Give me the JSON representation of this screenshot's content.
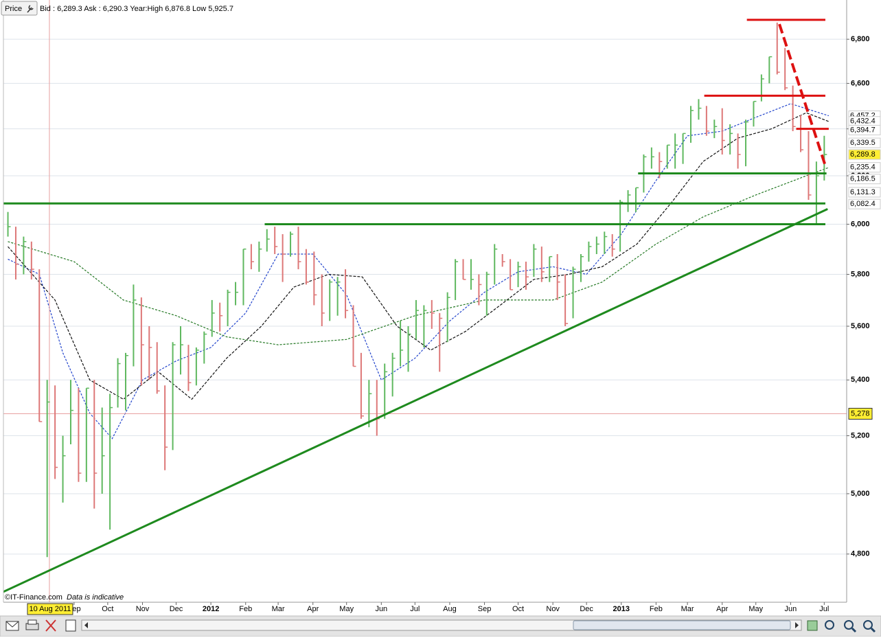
{
  "header": {
    "button": "Price",
    "quote": "Bid : 6,289.3 Ask : 6,290.3 Year:High 6,876.8 Low 5,925.7"
  },
  "footer": {
    "copyright": "©IT-Finance.com",
    "note": "Data is indicative"
  },
  "chart_data": {
    "type": "ohlc",
    "log_scale": true,
    "grid": true,
    "xlim": [
      "2011-06-30",
      "2013-07-21"
    ],
    "ylim": [
      4646,
      6983
    ],
    "yticks": [
      {
        "value": 4800,
        "label": "4,800"
      },
      {
        "value": 5000,
        "label": "5,000"
      },
      {
        "value": 5200,
        "label": "5,200"
      },
      {
        "value": 5400,
        "label": "5,400"
      },
      {
        "value": 5600,
        "label": "5,600"
      },
      {
        "value": 5800,
        "label": "5,800"
      },
      {
        "value": 6000,
        "label": "6,000"
      },
      {
        "value": 6200,
        "label": "6,200"
      },
      {
        "value": 6400,
        "label": "6,400"
      },
      {
        "value": 6600,
        "label": "6,600"
      },
      {
        "value": 6800,
        "label": "6,800"
      }
    ],
    "xticks": [
      {
        "value": "2011-09-01",
        "label": "Sep"
      },
      {
        "value": "2011-10-01",
        "label": "Oct"
      },
      {
        "value": "2011-11-01",
        "label": "Nov"
      },
      {
        "value": "2011-12-01",
        "label": "Dec"
      },
      {
        "value": "2012-01-01",
        "label": "2012"
      },
      {
        "value": "2012-02-01",
        "label": "Feb"
      },
      {
        "value": "2012-03-01",
        "label": "Mar"
      },
      {
        "value": "2012-04-01",
        "label": "Apr"
      },
      {
        "value": "2012-05-01",
        "label": "May"
      },
      {
        "value": "2012-06-01",
        "label": "Jun"
      },
      {
        "value": "2012-07-01",
        "label": "Jul"
      },
      {
        "value": "2012-08-01",
        "label": "Aug"
      },
      {
        "value": "2012-09-01",
        "label": "Sep"
      },
      {
        "value": "2012-10-01",
        "label": "Oct"
      },
      {
        "value": "2012-11-01",
        "label": "Nov"
      },
      {
        "value": "2012-12-01",
        "label": "Dec"
      },
      {
        "value": "2013-01-01",
        "label": "2013"
      },
      {
        "value": "2013-02-01",
        "label": "Feb"
      },
      {
        "value": "2013-03-01",
        "label": "Mar"
      },
      {
        "value": "2013-04-01",
        "label": "Apr"
      },
      {
        "value": "2013-05-01",
        "label": "May"
      },
      {
        "value": "2013-06-01",
        "label": "Jun"
      },
      {
        "value": "2013-07-01",
        "label": "Jul"
      }
    ],
    "up_color": "#5fb85f",
    "down_color": "#dd7777",
    "ohlc": {
      "x": [
        "2011-07-04",
        "2011-07-11",
        "2011-07-18",
        "2011-07-25",
        "2011-08-01",
        "2011-08-08",
        "2011-08-15",
        "2011-08-22",
        "2011-08-29",
        "2011-09-05",
        "2011-09-12",
        "2011-09-19",
        "2011-09-26",
        "2011-10-03",
        "2011-10-10",
        "2011-10-17",
        "2011-10-24",
        "2011-10-31",
        "2011-11-07",
        "2011-11-14",
        "2011-11-21",
        "2011-11-28",
        "2011-12-05",
        "2011-12-12",
        "2011-12-19",
        "2011-12-26",
        "2012-01-02",
        "2012-01-09",
        "2012-01-16",
        "2012-01-23",
        "2012-01-30",
        "2012-02-06",
        "2012-02-13",
        "2012-02-20",
        "2012-02-27",
        "2012-03-05",
        "2012-03-12",
        "2012-03-19",
        "2012-03-26",
        "2012-04-02",
        "2012-04-09",
        "2012-04-16",
        "2012-04-23",
        "2012-04-30",
        "2012-05-07",
        "2012-05-14",
        "2012-05-21",
        "2012-05-28",
        "2012-06-04",
        "2012-06-11",
        "2012-06-18",
        "2012-06-25",
        "2012-07-02",
        "2012-07-09",
        "2012-07-16",
        "2012-07-23",
        "2012-07-30",
        "2012-08-06",
        "2012-08-13",
        "2012-08-20",
        "2012-08-27",
        "2012-09-03",
        "2012-09-10",
        "2012-09-17",
        "2012-09-24",
        "2012-10-01",
        "2012-10-08",
        "2012-10-15",
        "2012-10-22",
        "2012-10-29",
        "2012-11-05",
        "2012-11-12",
        "2012-11-19",
        "2012-11-26",
        "2012-12-03",
        "2012-12-10",
        "2012-12-17",
        "2012-12-24",
        "2012-12-31",
        "2013-01-07",
        "2013-01-14",
        "2013-01-21",
        "2013-01-28",
        "2013-02-04",
        "2013-02-11",
        "2013-02-18",
        "2013-02-25",
        "2013-03-04",
        "2013-03-11",
        "2013-03-18",
        "2013-03-25",
        "2013-04-01",
        "2013-04-08",
        "2013-04-15",
        "2013-04-22",
        "2013-04-29",
        "2013-05-06",
        "2013-05-13",
        "2013-05-20",
        "2013-05-27",
        "2013-06-03",
        "2013-06-10",
        "2013-06-17",
        "2013-06-24",
        "2013-07-01"
      ],
      "high": [
        6050,
        5990,
        5950,
        5930,
        5820,
        5400,
        5380,
        5200,
        5400,
        5370,
        5370,
        5400,
        5300,
        5350,
        5480,
        5500,
        5760,
        5710,
        5600,
        5540,
        5380,
        5540,
        5600,
        5530,
        5520,
        5580,
        5700,
        5690,
        5740,
        5770,
        5900,
        5920,
        5930,
        5980,
        5990,
        5960,
        5970,
        5990,
        5900,
        5890,
        5800,
        5780,
        5790,
        5820,
        5680,
        5500,
        5400,
        5400,
        5460,
        5500,
        5620,
        5600,
        5700,
        5680,
        5700,
        5650,
        5730,
        5860,
        5860,
        5860,
        5800,
        5810,
        5920,
        5880,
        5860,
        5850,
        5850,
        5920,
        5910,
        5870,
        5880,
        5800,
        5830,
        5880,
        5930,
        5950,
        5970,
        5960,
        6100,
        6140,
        6150,
        6290,
        6320,
        6300,
        6330,
        6380,
        6380,
        6500,
        6530,
        6500,
        6440,
        6490,
        6420,
        6380,
        6440,
        6520,
        6640,
        6720,
        6877,
        6760,
        6590,
        6460,
        6390,
        6260,
        6370
      ],
      "low": [
        5950,
        5780,
        5800,
        5780,
        5250,
        4790,
        5050,
        4970,
        5170,
        5040,
        5040,
        4950,
        5000,
        4880,
        5300,
        5290,
        5450,
        5380,
        5400,
        5350,
        5080,
        5150,
        5420,
        5360,
        5380,
        5460,
        5560,
        5580,
        5600,
        5680,
        5680,
        5820,
        5810,
        5890,
        5880,
        5770,
        5870,
        5820,
        5760,
        5680,
        5600,
        5620,
        5640,
        5630,
        5450,
        5260,
        5230,
        5200,
        5260,
        5340,
        5450,
        5430,
        5550,
        5520,
        5590,
        5430,
        5540,
        5700,
        5780,
        5740,
        5680,
        5640,
        5760,
        5830,
        5740,
        5750,
        5740,
        5790,
        5770,
        5770,
        5700,
        5600,
        5630,
        5770,
        5850,
        5880,
        5880,
        5870,
        5890,
        6050,
        6050,
        6130,
        6230,
        6190,
        6230,
        6230,
        6250,
        6340,
        6440,
        6370,
        6360,
        6290,
        6290,
        6230,
        6240,
        6410,
        6520,
        6600,
        6640,
        6570,
        6390,
        6300,
        6100,
        6000,
        6180
      ],
      "close": [
        5990,
        5840,
        5930,
        5820,
        5250,
        5320,
        5090,
        5130,
        5290,
        5070,
        5370,
        5070,
        5130,
        5300,
        5460,
        5490,
        5700,
        5530,
        5520,
        5360,
        5160,
        5530,
        5530,
        5390,
        5510,
        5570,
        5650,
        5640,
        5730,
        5730,
        5900,
        5850,
        5900,
        5940,
        5910,
        5880,
        5960,
        5850,
        5770,
        5720,
        5650,
        5770,
        5770,
        5660,
        5450,
        5270,
        5350,
        5260,
        5430,
        5480,
        5510,
        5570,
        5660,
        5660,
        5650,
        5630,
        5710,
        5850,
        5780,
        5780,
        5760,
        5800,
        5900,
        5850,
        5740,
        5830,
        5790,
        5900,
        5810,
        5870,
        5770,
        5610,
        5820,
        5870,
        5910,
        5920,
        5950,
        5900,
        6090,
        6120,
        6150,
        6280,
        6280,
        6260,
        6330,
        6330,
        6380,
        6480,
        6490,
        6390,
        6410,
        6350,
        6380,
        6290,
        6430,
        6520,
        6620,
        6720,
        6650,
        6580,
        6410,
        6310,
        6120,
        6200,
        6290
      ]
    },
    "series": [
      {
        "color": "#2244cc",
        "dash": "3 2",
        "x": [
          "2011-07-04",
          "2011-08-01",
          "2011-08-22",
          "2011-09-15",
          "2011-10-05",
          "2011-11-01",
          "2011-12-01",
          "2012-01-01",
          "2012-02-01",
          "2012-03-01",
          "2012-04-01",
          "2012-05-01",
          "2012-06-01",
          "2012-07-01",
          "2012-08-01",
          "2012-09-01",
          "2012-10-01",
          "2012-11-01",
          "2012-12-01",
          "2013-01-01",
          "2013-02-01",
          "2013-03-01",
          "2013-04-01",
          "2013-05-01",
          "2013-06-01",
          "2013-07-05"
        ],
        "values": [
          5860,
          5800,
          5500,
          5280,
          5190,
          5400,
          5470,
          5520,
          5650,
          5880,
          5880,
          5720,
          5400,
          5480,
          5620,
          5730,
          5810,
          5830,
          5800,
          5960,
          6180,
          6370,
          6390,
          6450,
          6510,
          6457
        ]
      },
      {
        "color": "#111111",
        "dash": "4 2",
        "x": [
          "2011-07-04",
          "2011-08-15",
          "2011-09-15",
          "2011-10-15",
          "2011-11-15",
          "2011-12-15",
          "2012-01-15",
          "2012-02-15",
          "2012-03-15",
          "2012-04-15",
          "2012-05-15",
          "2012-06-15",
          "2012-07-15",
          "2012-08-15",
          "2012-09-15",
          "2012-10-15",
          "2012-11-15",
          "2012-12-15",
          "2013-01-15",
          "2013-02-15",
          "2013-03-15",
          "2013-04-15",
          "2013-05-15",
          "2013-06-15",
          "2013-07-05"
        ],
        "values": [
          5910,
          5700,
          5400,
          5330,
          5430,
          5330,
          5480,
          5600,
          5750,
          5800,
          5790,
          5600,
          5510,
          5580,
          5680,
          5780,
          5800,
          5830,
          5920,
          6090,
          6260,
          6360,
          6400,
          6470,
          6432
        ]
      },
      {
        "color": "#227722",
        "dash": "3 2",
        "x": [
          "2011-07-04",
          "2011-09-01",
          "2011-10-15",
          "2011-12-01",
          "2012-01-15",
          "2012-03-01",
          "2012-05-01",
          "2012-07-01",
          "2012-09-01",
          "2012-11-01",
          "2012-12-15",
          "2013-02-01",
          "2013-03-15",
          "2013-05-01",
          "2013-06-15",
          "2013-07-05"
        ],
        "values": [
          5930,
          5850,
          5700,
          5640,
          5560,
          5530,
          5550,
          5640,
          5700,
          5700,
          5770,
          5920,
          6030,
          6120,
          6200,
          6235
        ]
      }
    ],
    "lines": [
      {
        "color": "#1e8a1e",
        "width": 3,
        "x": [
          "2011-06-30",
          "2013-07-04"
        ],
        "y": [
          4679,
          6062
        ]
      },
      {
        "color": "#1e8a1e",
        "width": 3,
        "x": [
          "2011-06-30",
          "2013-07-02"
        ],
        "y": [
          6085,
          6085
        ]
      },
      {
        "color": "#1e8a1e",
        "width": 3,
        "x": [
          "2012-02-18",
          "2013-07-02"
        ],
        "y": [
          6000,
          6000
        ]
      },
      {
        "color": "#1e8a1e",
        "width": 3,
        "x": [
          "2013-01-16",
          "2013-07-03"
        ],
        "y": [
          6210,
          6210
        ]
      },
      {
        "color": "#dd1111",
        "width": 3,
        "x": [
          "2013-04-23",
          "2013-07-02"
        ],
        "y": [
          6890,
          6890
        ]
      },
      {
        "color": "#dd1111",
        "width": 3,
        "x": [
          "2013-03-16",
          "2013-07-02"
        ],
        "y": [
          6545,
          6545
        ]
      },
      {
        "color": "#dd1111",
        "width": 3,
        "x": [
          "2013-06-06",
          "2013-07-05"
        ],
        "y": [
          6400,
          6400
        ]
      },
      {
        "color": "#dd1111",
        "width": 4,
        "dash": "14 6",
        "x": [
          "2013-05-22",
          "2013-07-02"
        ],
        "y": [
          6870,
          6242
        ]
      }
    ],
    "price_labels": [
      {
        "value": 6457.2,
        "label": "6,457.2",
        "color": "#2244cc"
      },
      {
        "value": 6432.4,
        "label": "6,432.4",
        "color": "#111111"
      },
      {
        "value": 6394.7,
        "label": "6,394.7",
        "color": "#cc1111"
      },
      {
        "value": 6339.5,
        "label": "6,339.5",
        "color": "#cc1111"
      },
      {
        "value": 6289.8,
        "label": "6,289.8",
        "color": "#111111",
        "highlight": "#ffee33"
      },
      {
        "value": 6235.4,
        "label": "6,235.4",
        "color": "#111111"
      },
      {
        "value": 6186.5,
        "label": "6,186.5",
        "color": "#227722"
      },
      {
        "value": 6131.3,
        "label": "6,131.3",
        "color": "#227722"
      },
      {
        "value": 6082.4,
        "label": "6,082.4",
        "color": "#227722"
      }
    ],
    "crosshair": {
      "x": "2011-08-10",
      "x_label": "10 Aug 2011",
      "y": 5278,
      "y_label": "5,278",
      "color": "#e8a0a0",
      "highlight": "#ffee33"
    }
  }
}
